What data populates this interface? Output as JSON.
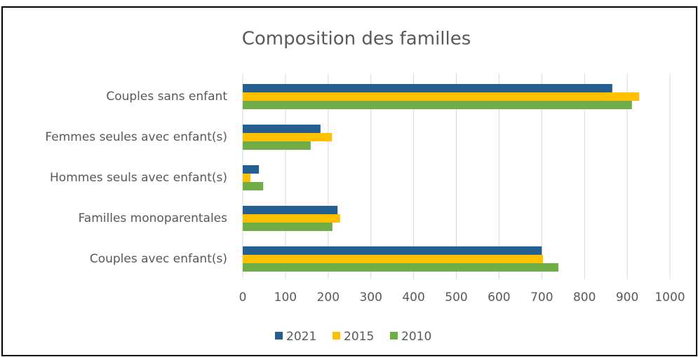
{
  "chart_data": {
    "type": "hbar",
    "title": "Composition des familles",
    "categories": [
      "Couples sans enfant",
      "Femmes seules avec enfant(s)",
      "Hommes seuls avec enfant(s)",
      "Familles monoparentales",
      "Couples avec enfant(s)"
    ],
    "series": [
      {
        "name": "2021",
        "color": "#255e91",
        "values": [
          865,
          182,
          38,
          222,
          700
        ]
      },
      {
        "name": "2015",
        "color": "#ffc000",
        "values": [
          928,
          209,
          18,
          228,
          703
        ]
      },
      {
        "name": "2010",
        "color": "#70ad47",
        "values": [
          911,
          159,
          48,
          210,
          739
        ]
      }
    ],
    "xlim": [
      0,
      1000
    ],
    "xticks": [
      0,
      100,
      200,
      300,
      400,
      500,
      600,
      700,
      800,
      900,
      1000
    ],
    "grid": true,
    "legend": "bottom"
  }
}
